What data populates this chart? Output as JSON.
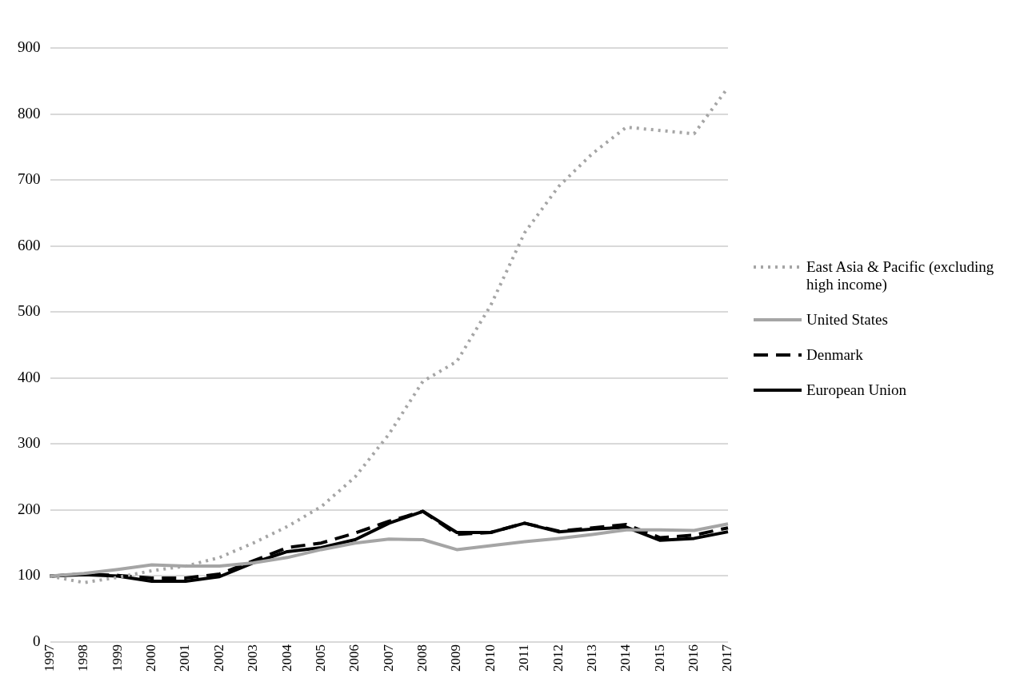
{
  "chart_data": {
    "type": "line",
    "categories": [
      "1997",
      "1998",
      "1999",
      "2000",
      "2001",
      "2002",
      "2003",
      "2004",
      "2005",
      "2006",
      "2007",
      "2008",
      "2009",
      "2010",
      "2011",
      "2012",
      "2013",
      "2014",
      "2015",
      "2016",
      "2017"
    ],
    "series": [
      {
        "name": "East Asia & Pacific (excluding high income)",
        "color": "#a5a5a5",
        "line_style": "dotted",
        "values": [
          100,
          90,
          98,
          108,
          115,
          128,
          150,
          175,
          205,
          250,
          315,
          395,
          425,
          510,
          620,
          690,
          740,
          780,
          775,
          770,
          840
        ]
      },
      {
        "name": "United States",
        "color": "#a5a5a5",
        "line_style": "solid",
        "values": [
          100,
          104,
          110,
          117,
          115,
          115,
          120,
          128,
          140,
          150,
          156,
          155,
          140,
          146,
          152,
          157,
          163,
          170,
          170,
          169,
          179
        ]
      },
      {
        "name": "Denmark",
        "color": "#000000",
        "line_style": "dashed",
        "values": [
          100,
          103,
          101,
          97,
          97,
          103,
          123,
          143,
          150,
          165,
          183,
          198,
          163,
          166,
          180,
          168,
          173,
          178,
          158,
          162,
          173
        ]
      },
      {
        "name": "European Union",
        "color": "#000000",
        "line_style": "solid",
        "values": [
          100,
          102,
          100,
          92,
          92,
          99,
          120,
          137,
          143,
          155,
          180,
          198,
          166,
          166,
          180,
          167,
          171,
          174,
          154,
          157,
          167
        ]
      }
    ],
    "ylim": [
      0,
      900
    ],
    "yticks": [
      0,
      100,
      200,
      300,
      400,
      500,
      600,
      700,
      800,
      900
    ],
    "grid": "y",
    "legend": "right",
    "marker": "none"
  }
}
